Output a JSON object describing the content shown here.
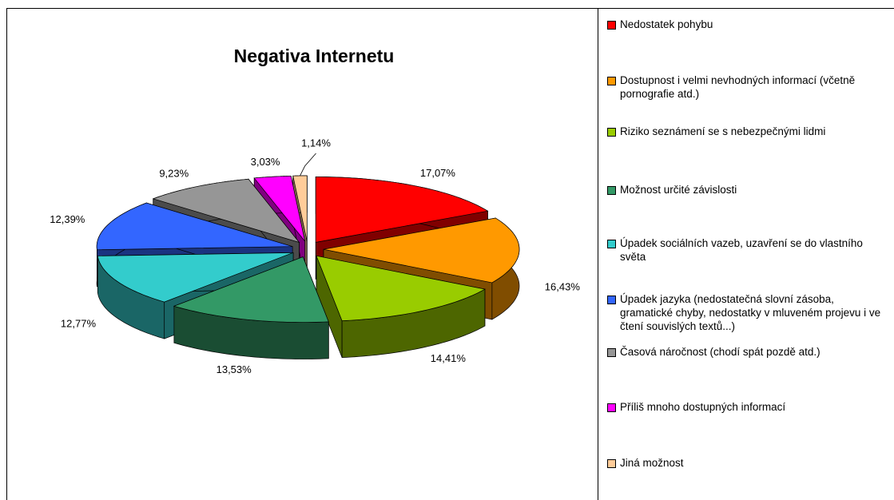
{
  "chart_data": {
    "type": "pie3d",
    "title": "Negativa Internetu",
    "categories": [
      "Nedostatek pohybu",
      "Dostupnost i velmi nevhodných informací (včetně pornografie atd.)",
      "Riziko seznámení se s nebezpečnými lidmi",
      "Možnost určité závislosti",
      "Úpadek sociálních vazeb, uzavření se do vlastního světa",
      "Úpadek jazyka (nedostatečná slovní zásoba, gramatické chyby, nedostatky v mluveném projevu i ve čtení souvislých textů...)",
      "Časová náročnost (chodí spát pozdě atd.)",
      "Příliš mnoho dostupných informací",
      "Jiná možnost"
    ],
    "values": [
      17.07,
      16.43,
      14.41,
      13.53,
      12.77,
      12.39,
      9.23,
      3.03,
      1.14
    ],
    "value_labels": [
      "17,07%",
      "16,43%",
      "14,41%",
      "13,53%",
      "12,77%",
      "12,39%",
      "9,23%",
      "3,03%",
      "1,14%"
    ],
    "colors": [
      "#ff0000",
      "#ff9900",
      "#99cc00",
      "#339966",
      "#33cccc",
      "#3366ff",
      "#969696",
      "#ff00ff",
      "#ffcc99"
    ],
    "legend": "right"
  }
}
